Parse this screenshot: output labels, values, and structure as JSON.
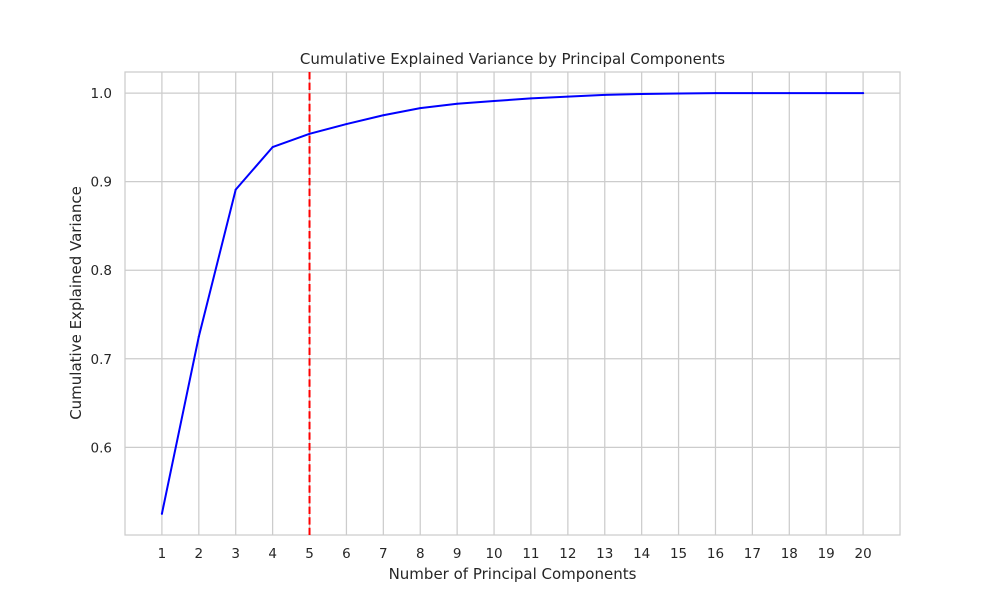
{
  "chart_data": {
    "type": "line",
    "title": "Cumulative Explained Variance by Principal Components",
    "xlabel": "Number of Principal Components",
    "ylabel": "Cumulative Explained Variance",
    "x": [
      1,
      2,
      3,
      4,
      5,
      6,
      7,
      8,
      9,
      10,
      11,
      12,
      13,
      14,
      15,
      16,
      17,
      18,
      19,
      20
    ],
    "series": [
      {
        "values": [
          0.525,
          0.725,
          0.891,
          0.939,
          0.954,
          0.965,
          0.975,
          0.983,
          0.988,
          0.991,
          0.994,
          0.996,
          0.998,
          0.999,
          0.9995,
          1.0,
          1.0,
          1.0,
          1.0,
          1.0
        ],
        "color": "#0000ff"
      }
    ],
    "reference_line": {
      "orientation": "vertical",
      "x": 5,
      "color": "#ff0000",
      "style": "dashed"
    },
    "xticks": [
      "1",
      "2",
      "3",
      "4",
      "5",
      "6",
      "7",
      "8",
      "9",
      "10",
      "11",
      "12",
      "13",
      "14",
      "15",
      "16",
      "17",
      "18",
      "19",
      "20"
    ],
    "yticks": [
      {
        "value": 0.6,
        "label": "0.6"
      },
      {
        "value": 0.7,
        "label": "0.7"
      },
      {
        "value": 0.8,
        "label": "0.8"
      },
      {
        "value": 0.9,
        "label": "0.9"
      },
      {
        "value": 1.0,
        "label": "1.0"
      }
    ],
    "xlim": [
      0,
      21
    ],
    "ylim": [
      0.501,
      1.0238
    ],
    "grid": true,
    "legend": "none",
    "colors": {
      "grid": "#cccccc",
      "spine": "#cccccc",
      "text": "#262626",
      "background": "#ffffff"
    }
  }
}
